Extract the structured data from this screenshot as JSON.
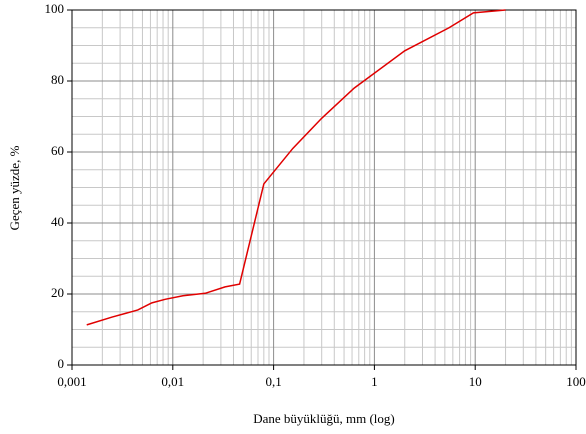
{
  "chart_data": {
    "type": "line",
    "xlabel": "Dane büyüklüğü, mm (log)",
    "ylabel": "Geçen yüzde, %",
    "x": [
      0.0014,
      0.0025,
      0.0045,
      0.0062,
      0.0084,
      0.0126,
      0.021,
      0.033,
      0.046,
      0.08,
      0.155,
      0.3,
      0.63,
      2.0,
      5.5,
      9.6,
      20
    ],
    "values": [
      11.3,
      13.5,
      15.5,
      17.5,
      18.5,
      19.5,
      20.2,
      22,
      22.8,
      51,
      61,
      69.5,
      78,
      88.5,
      95,
      99.2,
      100
    ],
    "color": "#e00000",
    "xscale": "log",
    "xlim": [
      0.001,
      100
    ],
    "xticks": [
      {
        "value": 0.001,
        "label": "0,001"
      },
      {
        "value": 0.01,
        "label": "0,01"
      },
      {
        "value": 0.1,
        "label": "0,1"
      },
      1,
      10,
      100
    ],
    "ylim": [
      0,
      100
    ],
    "yticks": [
      0,
      20,
      40,
      60,
      80,
      100
    ],
    "grid": true,
    "minor_grid": true
  }
}
